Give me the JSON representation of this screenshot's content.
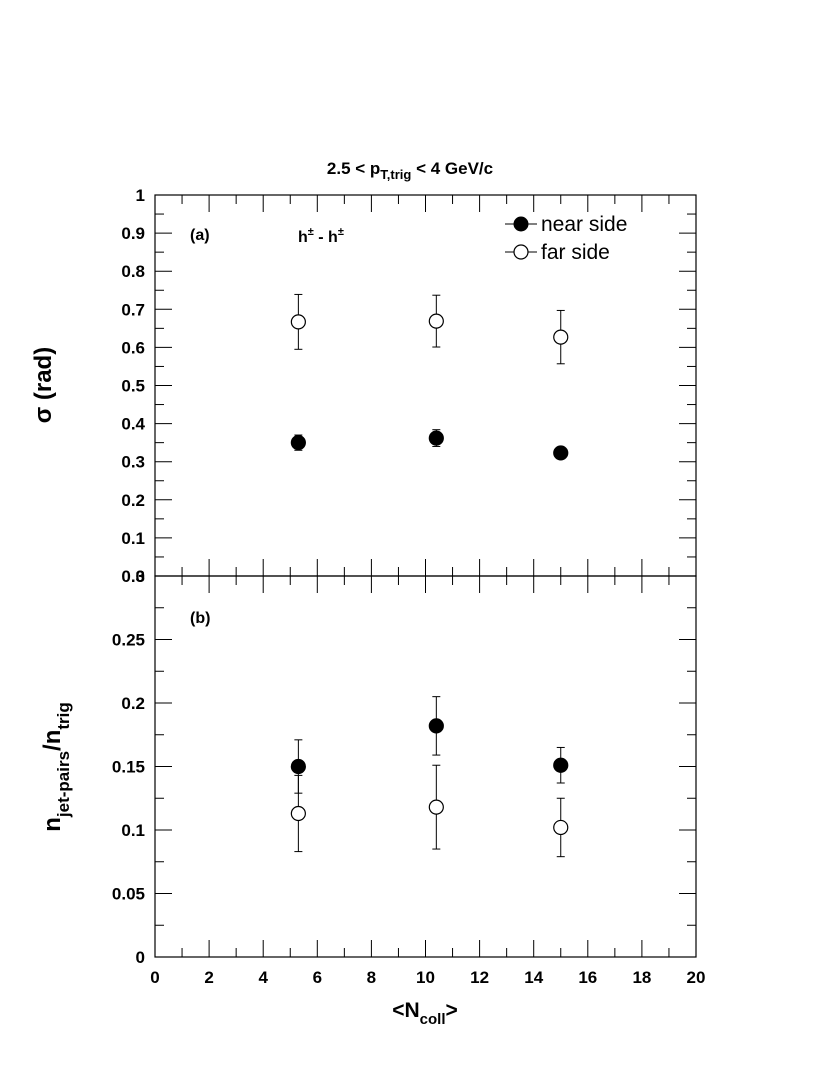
{
  "title": {
    "main": "2.5 < p",
    "sub": "T,trig",
    "tail": " < 4 GeV/c"
  },
  "legend": {
    "near": "near side",
    "far": "far side"
  },
  "xlabel": {
    "pre": "<N",
    "sub": "coll",
    "post": ">"
  },
  "chart_data": [
    {
      "type": "scatter",
      "panel_label": "(a)",
      "annotation": {
        "base1": "h",
        "sup1": "±",
        "mid": " - h",
        "sup2": "±"
      },
      "ylabel": {
        "main": "σ  (rad)"
      },
      "xlim": [
        0,
        20
      ],
      "ylim": [
        0,
        1
      ],
      "yticks": [
        0,
        0.1,
        0.2,
        0.3,
        0.4,
        0.5,
        0.6,
        0.7,
        0.8,
        0.9,
        1
      ],
      "ytick_labels": [
        "0",
        "0.1",
        "0.2",
        "0.3",
        "0.4",
        "0.5",
        "0.6",
        "0.7",
        "0.8",
        "0.9",
        "1"
      ],
      "series": [
        {
          "name": "near side",
          "marker": "filled-circle",
          "x": [
            5.3,
            10.4,
            15.0
          ],
          "y": [
            0.35,
            0.362,
            0.323
          ],
          "yerr": [
            0.02,
            0.022,
            0.012
          ]
        },
        {
          "name": "far side",
          "marker": "open-circle",
          "x": [
            5.3,
            10.4,
            15.0
          ],
          "y": [
            0.667,
            0.669,
            0.627
          ],
          "yerr": [
            0.072,
            0.068,
            0.07
          ]
        }
      ]
    },
    {
      "type": "scatter",
      "panel_label": "(b)",
      "ylabel": {
        "main": "n",
        "sub1": "jet-pairs",
        "mid": "/n",
        "sub2": "trig"
      },
      "xlim": [
        0,
        20
      ],
      "ylim": [
        0,
        0.3
      ],
      "xticks": [
        0,
        2,
        4,
        6,
        8,
        10,
        12,
        14,
        16,
        18,
        20
      ],
      "xtick_labels": [
        "0",
        "2",
        "4",
        "6",
        "8",
        "10",
        "12",
        "14",
        "16",
        "18",
        "20"
      ],
      "yticks": [
        0,
        0.05,
        0.1,
        0.15,
        0.2,
        0.25,
        0.3
      ],
      "ytick_labels": [
        "0",
        "0.05",
        "0.1",
        "0.15",
        "0.2",
        "0.25",
        "0.3"
      ],
      "series": [
        {
          "name": "near side",
          "marker": "filled-circle",
          "x": [
            5.3,
            10.4,
            15.0
          ],
          "y": [
            0.15,
            0.182,
            0.151
          ],
          "yerr": [
            0.021,
            0.023,
            0.014
          ]
        },
        {
          "name": "far side",
          "marker": "open-circle",
          "x": [
            5.3,
            10.4,
            15.0
          ],
          "y": [
            0.113,
            0.118,
            0.102
          ],
          "yerr": [
            0.03,
            0.033,
            0.023
          ]
        }
      ]
    }
  ]
}
